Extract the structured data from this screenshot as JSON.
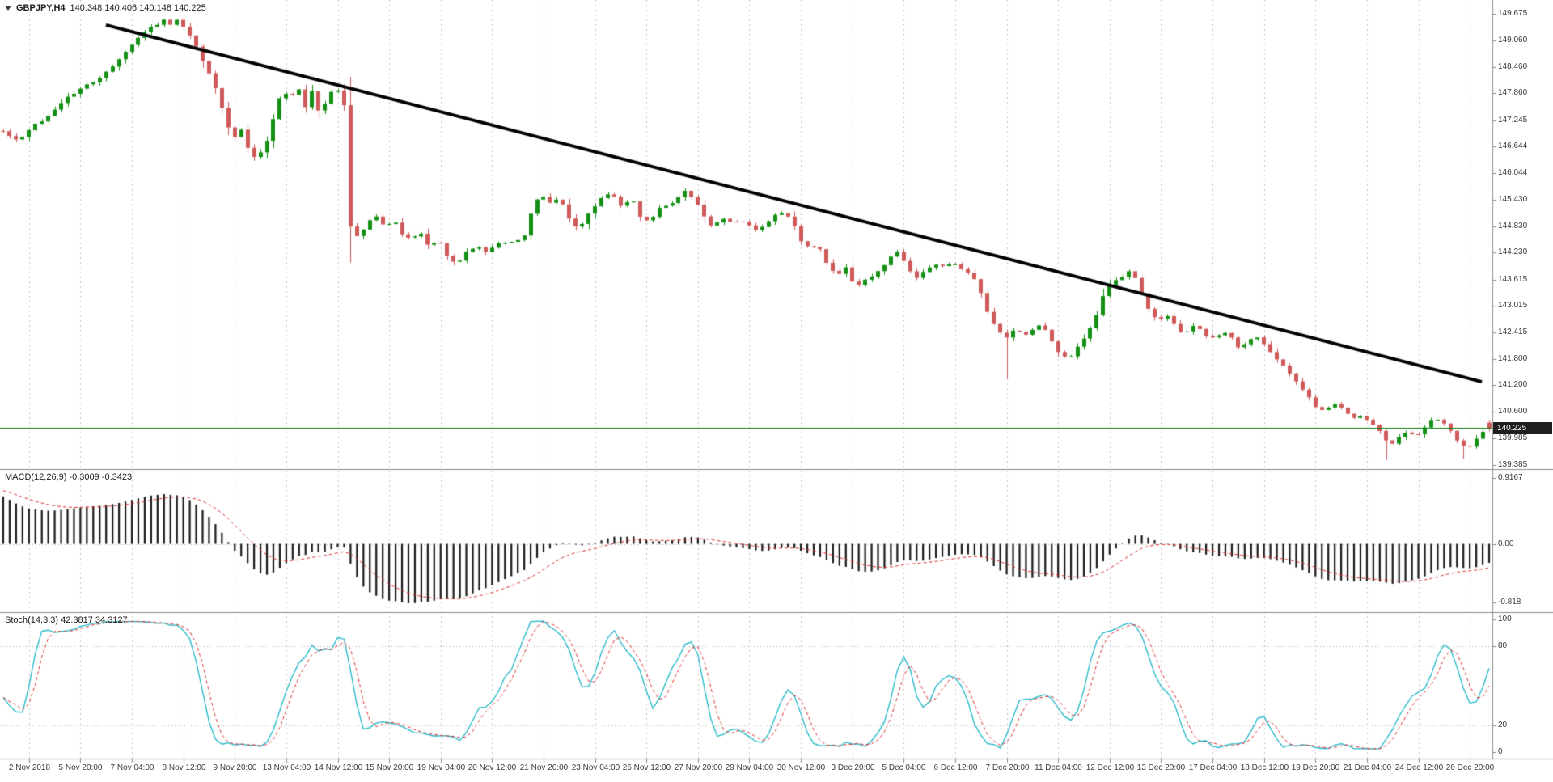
{
  "header": {
    "symbol": "GBPJPY,H4",
    "ohlc": "140.348 140.406 140.148 140.225"
  },
  "colors": {
    "background": "#ffffff",
    "grid": "#c9c9c9",
    "separator": "#8a8a8a",
    "bull": "#149114",
    "bear": "#d05a5a",
    "trendline": "#000000",
    "current_price_line": "#008000",
    "price_tag_bg": "#1f1f1f",
    "price_tag_text": "#ffffff",
    "macd_histogram": "#1a1a1a",
    "macd_signal": "#e03030",
    "stoch_k": "#1fb7c9",
    "stoch_d": "#e03030",
    "axis_text": "#3a3a3a"
  },
  "chart_data": [
    {
      "type": "candlestick",
      "pane": "main",
      "symbol": "GBPJPY",
      "timeframe": "H4",
      "open": 140.348,
      "high": 140.406,
      "low": 140.148,
      "close": 140.225,
      "current_price": 140.225,
      "current_price_label": "140.225",
      "ylim": [
        139.29,
        149.99
      ],
      "y_ticks": [
        "149.675",
        "149.060",
        "148.460",
        "147.860",
        "147.245",
        "146.644",
        "146.044",
        "145.430",
        "144.830",
        "144.230",
        "143.615",
        "143.015",
        "142.415",
        "141.800",
        "141.200",
        "140.600",
        "139.985",
        "139.385"
      ],
      "x_labels": [
        "2 Nov 2018",
        "5 Nov 20:00",
        "7 Nov 04:00",
        "8 Nov 12:00",
        "9 Nov 20:00",
        "13 Nov 04:00",
        "14 Nov 12:00",
        "15 Nov 20:00",
        "19 Nov 04:00",
        "20 Nov 12:00",
        "21 Nov 20:00",
        "23 Nov 04:00",
        "26 Nov 12:00",
        "27 Nov 20:00",
        "29 Nov 04:00",
        "30 Nov 12:00",
        "3 Dec 20:00",
        "5 Dec 04:00",
        "6 Dec 12:00",
        "7 Dec 20:00",
        "11 Dec 04:00",
        "12 Dec 12:00",
        "13 Dec 20:00",
        "17 Dec 04:00",
        "18 Dec 12:00",
        "19 Dec 20:00",
        "21 Dec 04:00",
        "24 Dec 12:00",
        "26 Dec 20:00"
      ],
      "bars": 232,
      "first_gridline_bar": 4,
      "bars_per_gridline": 8,
      "seed": 20181226,
      "noise": 0.05,
      "trendline": {
        "from": [
          0.071,
          149.42
        ],
        "to": [
          0.993,
          141.28
        ]
      },
      "spikes": [
        {
          "t": 0.675,
          "low": 141.35
        },
        {
          "t": 0.932,
          "low": 139.5
        },
        {
          "t": 0.984,
          "low": 139.52
        }
      ],
      "last_bar": [
        140.348,
        140.406,
        140.148,
        140.225
      ],
      "price_path": [
        [
          0,
          147.0
        ],
        [
          0.01,
          146.78
        ],
        [
          0.02,
          147.12
        ],
        [
          0.03,
          147.32
        ],
        [
          0.045,
          147.82
        ],
        [
          0.06,
          148.12
        ],
        [
          0.07,
          148.36
        ],
        [
          0.08,
          148.72
        ],
        [
          0.09,
          149.12
        ],
        [
          0.1,
          149.36
        ],
        [
          0.108,
          149.52
        ],
        [
          0.114,
          149.42
        ],
        [
          0.118,
          149.55
        ],
        [
          0.124,
          149.28
        ],
        [
          0.13,
          148.92
        ],
        [
          0.136,
          148.42
        ],
        [
          0.141,
          148.18
        ],
        [
          0.146,
          147.62
        ],
        [
          0.151,
          147.12
        ],
        [
          0.156,
          146.86
        ],
        [
          0.159,
          147.15
        ],
        [
          0.163,
          146.72
        ],
        [
          0.168,
          146.42
        ],
        [
          0.173,
          146.48
        ],
        [
          0.178,
          146.82
        ],
        [
          0.183,
          147.42
        ],
        [
          0.188,
          147.96
        ],
        [
          0.193,
          147.72
        ],
        [
          0.198,
          148.06
        ],
        [
          0.203,
          147.52
        ],
        [
          0.208,
          147.92
        ],
        [
          0.213,
          147.38
        ],
        [
          0.218,
          147.76
        ],
        [
          0.223,
          147.96
        ],
        [
          0.229,
          147.86
        ],
        [
          0.2335,
          144.82
        ],
        [
          0.239,
          144.58
        ],
        [
          0.245,
          144.92
        ],
        [
          0.251,
          145.06
        ],
        [
          0.257,
          144.82
        ],
        [
          0.263,
          144.98
        ],
        [
          0.269,
          144.62
        ],
        [
          0.275,
          144.52
        ],
        [
          0.281,
          144.68
        ],
        [
          0.287,
          144.32
        ],
        [
          0.293,
          144.56
        ],
        [
          0.299,
          144.12
        ],
        [
          0.305,
          143.96
        ],
        [
          0.311,
          144.22
        ],
        [
          0.318,
          144.36
        ],
        [
          0.325,
          144.26
        ],
        [
          0.333,
          144.42
        ],
        [
          0.341,
          144.46
        ],
        [
          0.35,
          144.56
        ],
        [
          0.357,
          145.36
        ],
        [
          0.363,
          145.52
        ],
        [
          0.369,
          145.36
        ],
        [
          0.375,
          145.46
        ],
        [
          0.381,
          145.02
        ],
        [
          0.387,
          144.72
        ],
        [
          0.393,
          145.06
        ],
        [
          0.399,
          145.32
        ],
        [
          0.405,
          145.56
        ],
        [
          0.411,
          145.5
        ],
        [
          0.417,
          145.26
        ],
        [
          0.423,
          145.46
        ],
        [
          0.429,
          145.02
        ],
        [
          0.435,
          144.96
        ],
        [
          0.441,
          145.22
        ],
        [
          0.447,
          145.32
        ],
        [
          0.453,
          145.42
        ],
        [
          0.459,
          145.62
        ],
        [
          0.465,
          145.46
        ],
        [
          0.471,
          145.12
        ],
        [
          0.477,
          144.82
        ],
        [
          0.483,
          145.02
        ],
        [
          0.489,
          144.92
        ],
        [
          0.495,
          144.96
        ],
        [
          0.501,
          144.86
        ],
        [
          0.507,
          144.72
        ],
        [
          0.513,
          144.86
        ],
        [
          0.519,
          145.06
        ],
        [
          0.525,
          145.16
        ],
        [
          0.531,
          144.92
        ],
        [
          0.537,
          144.46
        ],
        [
          0.543,
          144.32
        ],
        [
          0.549,
          144.36
        ],
        [
          0.555,
          143.96
        ],
        [
          0.561,
          143.66
        ],
        [
          0.567,
          143.92
        ],
        [
          0.573,
          143.46
        ],
        [
          0.579,
          143.56
        ],
        [
          0.585,
          143.72
        ],
        [
          0.591,
          143.86
        ],
        [
          0.597,
          144.12
        ],
        [
          0.603,
          144.26
        ],
        [
          0.609,
          143.86
        ],
        [
          0.615,
          143.66
        ],
        [
          0.621,
          143.86
        ],
        [
          0.627,
          143.96
        ],
        [
          0.633,
          143.92
        ],
        [
          0.639,
          144.02
        ],
        [
          0.645,
          143.86
        ],
        [
          0.651,
          143.76
        ],
        [
          0.657,
          143.42
        ],
        [
          0.663,
          142.82
        ],
        [
          0.669,
          142.46
        ],
        [
          0.675,
          142.26
        ],
        [
          0.681,
          142.52
        ],
        [
          0.687,
          142.32
        ],
        [
          0.693,
          142.46
        ],
        [
          0.699,
          142.62
        ],
        [
          0.705,
          142.22
        ],
        [
          0.711,
          141.92
        ],
        [
          0.717,
          141.76
        ],
        [
          0.723,
          142.06
        ],
        [
          0.729,
          142.36
        ],
        [
          0.735,
          142.72
        ],
        [
          0.741,
          143.32
        ],
        [
          0.747,
          143.56
        ],
        [
          0.753,
          143.66
        ],
        [
          0.759,
          143.82
        ],
        [
          0.765,
          143.42
        ],
        [
          0.771,
          142.92
        ],
        [
          0.777,
          142.66
        ],
        [
          0.783,
          142.82
        ],
        [
          0.789,
          142.52
        ],
        [
          0.795,
          142.36
        ],
        [
          0.801,
          142.56
        ],
        [
          0.807,
          142.42
        ],
        [
          0.813,
          142.26
        ],
        [
          0.819,
          142.36
        ],
        [
          0.825,
          142.42
        ],
        [
          0.831,
          142.06
        ],
        [
          0.837,
          142.16
        ],
        [
          0.843,
          142.32
        ],
        [
          0.849,
          142.12
        ],
        [
          0.855,
          141.86
        ],
        [
          0.861,
          141.66
        ],
        [
          0.867,
          141.42
        ],
        [
          0.873,
          141.16
        ],
        [
          0.879,
          140.92
        ],
        [
          0.885,
          140.62
        ],
        [
          0.891,
          140.66
        ],
        [
          0.897,
          140.76
        ],
        [
          0.903,
          140.62
        ],
        [
          0.909,
          140.46
        ],
        [
          0.915,
          140.52
        ],
        [
          0.921,
          140.32
        ],
        [
          0.927,
          140.12
        ],
        [
          0.933,
          139.82
        ],
        [
          0.939,
          140.02
        ],
        [
          0.945,
          140.12
        ],
        [
          0.951,
          140.06
        ],
        [
          0.957,
          140.26
        ],
        [
          0.963,
          140.46
        ],
        [
          0.969,
          140.36
        ],
        [
          0.975,
          140.12
        ],
        [
          0.981,
          139.82
        ],
        [
          0.987,
          139.78
        ],
        [
          0.993,
          140.06
        ],
        [
          1,
          140.22
        ]
      ]
    },
    {
      "type": "bar",
      "pane": "macd",
      "name": "MACD",
      "title": "MACD(12,26,9) -0.3009 -0.3423",
      "params": [
        12,
        26,
        9
      ],
      "values_display": [
        "-0.3009",
        "-0.3423"
      ],
      "y_ticks": [
        "0.9167",
        "0.00",
        "-0.818"
      ],
      "ylim": [
        -0.95,
        1.03
      ],
      "ema_seed": [
        0.15,
        0.85
      ],
      "signal_seed": 0.08
    },
    {
      "type": "line",
      "pane": "stoch",
      "name": "Stochastic",
      "title": "Stoch(14,3,3) 42.3817 34.3127",
      "params": [
        14,
        3,
        3
      ],
      "values_display": [
        "42.3817",
        "34.3127"
      ],
      "y_ticks": [
        "100",
        "80",
        "20",
        "0"
      ],
      "levels": [
        80,
        20
      ],
      "ylim": [
        -5,
        105
      ]
    }
  ]
}
